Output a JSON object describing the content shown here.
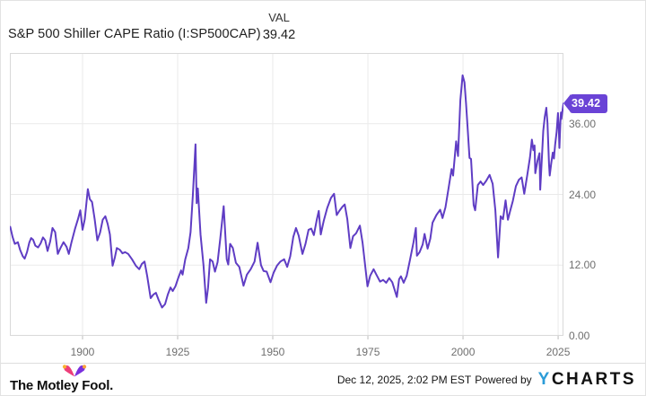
{
  "header": {
    "title": "S&P 500 Shiller CAPE Ratio (I:SP500CAP)",
    "val_label": "VAL",
    "val_value": "39.42"
  },
  "chart_data": {
    "type": "line",
    "title": "S&P 500 Shiller CAPE Ratio",
    "series_name": "S&P 500 Shiller CAPE Ratio (I:SP500CAP)",
    "xlabel": "",
    "ylabel": "",
    "grid": true,
    "legend": "none",
    "line_color": "#5f3dc4",
    "x_range": [
      1880.9,
      2026.4
    ],
    "y_range": [
      0,
      48
    ],
    "x_ticks": [
      1900,
      1925,
      1950,
      1975,
      2000,
      2025
    ],
    "x_tick_labels": [
      "1900",
      "1925",
      "1950",
      "1975",
      "2000",
      "2025"
    ],
    "y_ticks": [
      0,
      12,
      24,
      36
    ],
    "y_tick_labels": [
      "0.00",
      "12.00",
      "24.00",
      "36.00"
    ],
    "last_value": 39.42,
    "points": [
      [
        1881.0,
        18.5
      ],
      [
        1881.6,
        16.8
      ],
      [
        1882.2,
        15.6
      ],
      [
        1883.0,
        15.9
      ],
      [
        1883.6,
        14.6
      ],
      [
        1884.3,
        13.5
      ],
      [
        1884.8,
        13.1
      ],
      [
        1885.4,
        14.2
      ],
      [
        1886.0,
        15.8
      ],
      [
        1886.5,
        16.6
      ],
      [
        1887.0,
        16.3
      ],
      [
        1887.6,
        15.3
      ],
      [
        1888.3,
        15.0
      ],
      [
        1889.0,
        15.7
      ],
      [
        1889.6,
        16.7
      ],
      [
        1890.2,
        16.2
      ],
      [
        1890.8,
        14.4
      ],
      [
        1891.5,
        16.0
      ],
      [
        1892.1,
        18.3
      ],
      [
        1892.8,
        17.6
      ],
      [
        1893.5,
        13.9
      ],
      [
        1894.2,
        14.9
      ],
      [
        1895.0,
        15.9
      ],
      [
        1895.8,
        15.1
      ],
      [
        1896.4,
        13.9
      ],
      [
        1897.1,
        15.9
      ],
      [
        1898.0,
        18.1
      ],
      [
        1898.8,
        19.8
      ],
      [
        1899.4,
        21.3
      ],
      [
        1900.0,
        18.0
      ],
      [
        1900.6,
        19.8
      ],
      [
        1901.4,
        24.9
      ],
      [
        1901.9,
        23.2
      ],
      [
        1902.5,
        22.7
      ],
      [
        1903.2,
        19.7
      ],
      [
        1903.9,
        16.2
      ],
      [
        1904.6,
        17.5
      ],
      [
        1905.3,
        19.7
      ],
      [
        1906.0,
        20.3
      ],
      [
        1906.6,
        19.0
      ],
      [
        1907.2,
        17.2
      ],
      [
        1907.9,
        11.9
      ],
      [
        1908.5,
        13.3
      ],
      [
        1909.0,
        14.9
      ],
      [
        1909.8,
        14.6
      ],
      [
        1910.5,
        14.0
      ],
      [
        1911.2,
        14.2
      ],
      [
        1912.0,
        13.9
      ],
      [
        1913.0,
        13.0
      ],
      [
        1914.0,
        11.9
      ],
      [
        1914.9,
        11.3
      ],
      [
        1915.6,
        12.2
      ],
      [
        1916.3,
        12.6
      ],
      [
        1917.0,
        10.1
      ],
      [
        1917.9,
        6.4
      ],
      [
        1918.6,
        7.0
      ],
      [
        1919.3,
        7.3
      ],
      [
        1920.0,
        6.1
      ],
      [
        1920.9,
        4.8
      ],
      [
        1921.7,
        5.4
      ],
      [
        1922.4,
        7.0
      ],
      [
        1923.1,
        8.2
      ],
      [
        1923.7,
        7.6
      ],
      [
        1924.4,
        8.4
      ],
      [
        1925.1,
        9.7
      ],
      [
        1925.9,
        11.1
      ],
      [
        1926.3,
        10.4
      ],
      [
        1927.0,
        13.0
      ],
      [
        1927.8,
        14.9
      ],
      [
        1928.4,
        17.6
      ],
      [
        1929.0,
        24.0
      ],
      [
        1929.7,
        32.5
      ],
      [
        1930.0,
        22.5
      ],
      [
        1930.3,
        25.0
      ],
      [
        1931.0,
        17.2
      ],
      [
        1931.8,
        12.0
      ],
      [
        1932.5,
        5.6
      ],
      [
        1933.0,
        8.2
      ],
      [
        1933.5,
        13.0
      ],
      [
        1934.2,
        12.6
      ],
      [
        1934.8,
        10.9
      ],
      [
        1935.5,
        12.5
      ],
      [
        1936.2,
        16.5
      ],
      [
        1937.1,
        22.0
      ],
      [
        1937.9,
        13.0
      ],
      [
        1938.3,
        12.1
      ],
      [
        1938.8,
        15.6
      ],
      [
        1939.5,
        14.9
      ],
      [
        1940.3,
        12.4
      ],
      [
        1941.2,
        11.7
      ],
      [
        1942.3,
        8.5
      ],
      [
        1943.2,
        10.4
      ],
      [
        1944.2,
        11.3
      ],
      [
        1945.2,
        12.6
      ],
      [
        1946.0,
        15.8
      ],
      [
        1946.9,
        12.0
      ],
      [
        1947.6,
        11.0
      ],
      [
        1948.4,
        10.9
      ],
      [
        1949.4,
        9.1
      ],
      [
        1950.2,
        10.7
      ],
      [
        1951.1,
        11.9
      ],
      [
        1952.0,
        12.6
      ],
      [
        1953.0,
        13.0
      ],
      [
        1953.8,
        11.7
      ],
      [
        1954.6,
        13.5
      ],
      [
        1955.4,
        16.8
      ],
      [
        1956.1,
        18.3
      ],
      [
        1956.8,
        17.0
      ],
      [
        1957.8,
        13.9
      ],
      [
        1958.6,
        15.6
      ],
      [
        1959.4,
        18.0
      ],
      [
        1960.1,
        18.2
      ],
      [
        1960.8,
        17.1
      ],
      [
        1961.6,
        19.8
      ],
      [
        1962.1,
        21.2
      ],
      [
        1962.6,
        17.2
      ],
      [
        1963.4,
        19.5
      ],
      [
        1964.3,
        21.7
      ],
      [
        1965.3,
        23.4
      ],
      [
        1966.1,
        24.1
      ],
      [
        1966.8,
        20.5
      ],
      [
        1967.5,
        21.2
      ],
      [
        1968.3,
        21.9
      ],
      [
        1968.9,
        22.3
      ],
      [
        1969.6,
        19.8
      ],
      [
        1970.4,
        14.9
      ],
      [
        1971.1,
        16.9
      ],
      [
        1971.9,
        17.4
      ],
      [
        1972.9,
        18.7
      ],
      [
        1973.6,
        15.8
      ],
      [
        1974.9,
        8.4
      ],
      [
        1975.6,
        10.2
      ],
      [
        1976.5,
        11.3
      ],
      [
        1977.3,
        10.3
      ],
      [
        1978.2,
        9.2
      ],
      [
        1979.0,
        9.5
      ],
      [
        1979.8,
        9.0
      ],
      [
        1980.6,
        9.8
      ],
      [
        1981.4,
        9.1
      ],
      [
        1982.6,
        6.6
      ],
      [
        1983.2,
        9.6
      ],
      [
        1983.7,
        10.1
      ],
      [
        1984.4,
        9.0
      ],
      [
        1985.2,
        10.2
      ],
      [
        1986.1,
        13.0
      ],
      [
        1987.0,
        15.9
      ],
      [
        1987.6,
        18.3
      ],
      [
        1987.9,
        13.6
      ],
      [
        1988.6,
        14.2
      ],
      [
        1989.4,
        15.5
      ],
      [
        1989.9,
        17.3
      ],
      [
        1990.7,
        14.8
      ],
      [
        1991.4,
        16.5
      ],
      [
        1992.0,
        19.2
      ],
      [
        1993.0,
        20.5
      ],
      [
        1994.0,
        21.4
      ],
      [
        1994.6,
        20.0
      ],
      [
        1995.4,
        21.8
      ],
      [
        1996.2,
        25.0
      ],
      [
        1997.0,
        28.3
      ],
      [
        1997.4,
        27.2
      ],
      [
        1998.2,
        33.0
      ],
      [
        1998.7,
        30.5
      ],
      [
        1999.3,
        40.0
      ],
      [
        1999.9,
        44.2
      ],
      [
        2000.4,
        43.0
      ],
      [
        2000.8,
        39.5
      ],
      [
        2001.2,
        35.5
      ],
      [
        2001.7,
        30.2
      ],
      [
        2002.1,
        30.0
      ],
      [
        2002.8,
        22.2
      ],
      [
        2003.2,
        21.3
      ],
      [
        2003.9,
        25.6
      ],
      [
        2004.6,
        26.2
      ],
      [
        2005.3,
        25.6
      ],
      [
        2006.1,
        26.3
      ],
      [
        2007.0,
        27.3
      ],
      [
        2007.8,
        25.8
      ],
      [
        2008.5,
        21.3
      ],
      [
        2009.2,
        13.3
      ],
      [
        2009.9,
        20.3
      ],
      [
        2010.5,
        19.8
      ],
      [
        2011.2,
        23.0
      ],
      [
        2011.8,
        19.7
      ],
      [
        2012.4,
        21.2
      ],
      [
        2013.1,
        22.9
      ],
      [
        2013.9,
        25.4
      ],
      [
        2014.7,
        26.5
      ],
      [
        2015.4,
        26.9
      ],
      [
        2016.1,
        24.1
      ],
      [
        2016.9,
        27.3
      ],
      [
        2017.6,
        30.3
      ],
      [
        2018.1,
        33.3
      ],
      [
        2018.5,
        31.5
      ],
      [
        2018.8,
        32.3
      ],
      [
        2019.0,
        27.6
      ],
      [
        2019.6,
        29.8
      ],
      [
        2020.1,
        31.0
      ],
      [
        2020.3,
        24.8
      ],
      [
        2020.8,
        31.2
      ],
      [
        2021.1,
        34.8
      ],
      [
        2021.5,
        37.2
      ],
      [
        2021.9,
        38.7
      ],
      [
        2022.2,
        36.1
      ],
      [
        2022.6,
        29.2
      ],
      [
        2022.8,
        27.2
      ],
      [
        2023.2,
        29.3
      ],
      [
        2023.6,
        31.1
      ],
      [
        2023.9,
        30.1
      ],
      [
        2024.2,
        32.4
      ],
      [
        2024.6,
        34.6
      ],
      [
        2024.95,
        37.8
      ],
      [
        2025.2,
        34.8
      ],
      [
        2025.35,
        31.9
      ],
      [
        2025.6,
        36.2
      ],
      [
        2025.75,
        37.9
      ],
      [
        2025.85,
        36.8
      ],
      [
        2026.4,
        39.42
      ]
    ]
  },
  "badge": {
    "text": "39.42",
    "color": "#6a43d6"
  },
  "footer": {
    "brand": "The Motley Fool.",
    "timestamp": "Dec 12, 2025, 2:02 PM EST",
    "powered_by": "Powered by",
    "ycharts_y": "Y",
    "ycharts_rest": "CHARTS"
  }
}
